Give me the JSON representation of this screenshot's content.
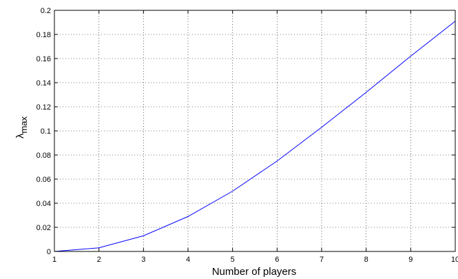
{
  "chart_data": {
    "type": "line",
    "title": "",
    "xlabel": "Number of players",
    "ylabel_main": "λ",
    "ylabel_sub": "max",
    "xlim": [
      1,
      10
    ],
    "ylim": [
      0,
      0.2
    ],
    "xticks": [
      "1",
      "2",
      "3",
      "4",
      "5",
      "6",
      "7",
      "8",
      "9",
      "10"
    ],
    "yticks": [
      "0",
      "0.02",
      "0.04",
      "0.06",
      "0.08",
      "0.1",
      "0.12",
      "0.14",
      "0.16",
      "0.18",
      "0.2"
    ],
    "grid": true,
    "line_color": "#0000ff",
    "series": [
      {
        "x": [
          1,
          2,
          3,
          4,
          5,
          6,
          7,
          8,
          9,
          10
        ],
        "values": [
          0,
          0.003,
          0.013,
          0.029,
          0.05,
          0.075,
          0.103,
          0.132,
          0.162,
          0.191
        ]
      }
    ]
  }
}
